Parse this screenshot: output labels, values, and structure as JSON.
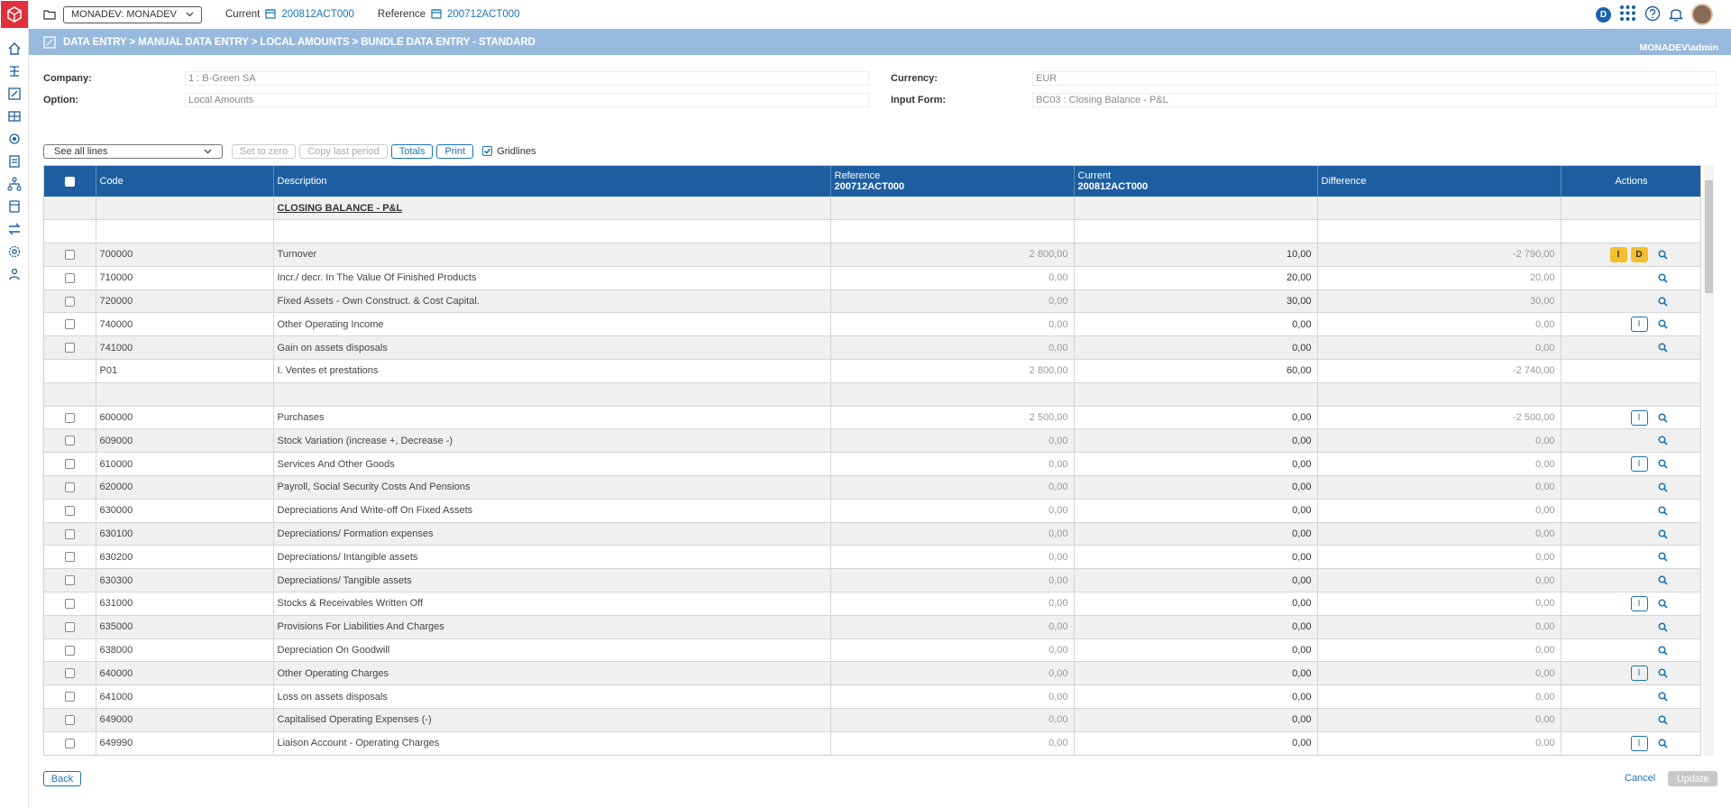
{
  "topbar": {
    "env_select": "MONADEV: MONADEV",
    "current_label": "Current",
    "current_value": "200812ACT000",
    "reference_label": "Reference",
    "reference_value": "200712ACT000",
    "badge_letter": "D"
  },
  "breadcrumb": {
    "path": "DATA ENTRY > MANUAL DATA ENTRY > LOCAL AMOUNTS > BUNDLE DATA ENTRY - STANDARD",
    "user": "MONADEV\\admin"
  },
  "form": {
    "company_label": "Company:",
    "company_value": "1 : B-Green SA",
    "option_label": "Option:",
    "option_value": "Local Amounts",
    "currency_label": "Currency:",
    "currency_value": "EUR",
    "input_form_label": "Input Form:",
    "input_form_value": "BC03 : Closing Balance - P&L"
  },
  "toolbar": {
    "lines_select": "See all lines",
    "set_to_zero": "Set to zero",
    "copy_last_period": "Copy last period",
    "totals": "Totals",
    "print": "Print",
    "gridlines": "Gridlines"
  },
  "grid": {
    "headers": {
      "code": "Code",
      "description": "Description",
      "reference": "Reference",
      "reference_period": "200712ACT000",
      "current": "Current",
      "current_period": "200812ACT000",
      "difference": "Difference",
      "actions": "Actions"
    },
    "rows": [
      {
        "type": "title",
        "description": "CLOSING BALANCE - P&L"
      },
      {
        "type": "blank"
      },
      {
        "type": "data",
        "checkbox": true,
        "code": "700000",
        "description": "Turnover",
        "reference": "2 800,00",
        "current": "10,00",
        "difference": "-2 790,00",
        "actions": [
          "I",
          "D"
        ],
        "action_style": "yellow"
      },
      {
        "type": "data",
        "checkbox": true,
        "code": "710000",
        "description": "Incr./ decr. In The Value Of Finished Products",
        "reference": "0,00",
        "current": "20,00",
        "difference": "20,00",
        "actions": []
      },
      {
        "type": "data",
        "checkbox": true,
        "code": "720000",
        "description": "Fixed Assets - Own Construct. & Cost Capital.",
        "reference": "0,00",
        "current": "30,00",
        "difference": "30,00",
        "actions": []
      },
      {
        "type": "data",
        "checkbox": true,
        "code": "740000",
        "description": "Other Operating Income",
        "reference": "0,00",
        "current": "0,00",
        "difference": "0,00",
        "actions": [
          "I"
        ],
        "action_style": "outline"
      },
      {
        "type": "data",
        "checkbox": true,
        "code": "741000",
        "description": "Gain on assets disposals",
        "reference": "0,00",
        "current": "0,00",
        "difference": "0,00",
        "actions": []
      },
      {
        "type": "total",
        "checkbox": false,
        "code": "P01",
        "description": "I. Ventes et prestations",
        "reference": "2 800,00",
        "current": "60,00",
        "difference": "-2 740,00",
        "no_search": true
      },
      {
        "type": "blank"
      },
      {
        "type": "data",
        "checkbox": true,
        "code": "600000",
        "description": "Purchases",
        "reference": "2 500,00",
        "current": "0,00",
        "difference": "-2 500,00",
        "actions": [
          "I"
        ],
        "action_style": "outline"
      },
      {
        "type": "data",
        "checkbox": true,
        "code": "609000",
        "description": "Stock Variation (increase +, Decrease -)",
        "reference": "0,00",
        "current": "0,00",
        "difference": "0,00",
        "actions": []
      },
      {
        "type": "data",
        "checkbox": true,
        "code": "610000",
        "description": "Services And Other Goods",
        "reference": "0,00",
        "current": "0,00",
        "difference": "0,00",
        "actions": [
          "I"
        ],
        "action_style": "outline"
      },
      {
        "type": "data",
        "checkbox": true,
        "code": "620000",
        "description": "Payroll, Social Security Costs And Pensions",
        "reference": "0,00",
        "current": "0,00",
        "difference": "0,00",
        "actions": []
      },
      {
        "type": "data",
        "checkbox": true,
        "code": "630000",
        "description": "Depreciations And Write-off On Fixed Assets",
        "reference": "0,00",
        "current": "0,00",
        "difference": "0,00",
        "actions": []
      },
      {
        "type": "data",
        "checkbox": true,
        "code": "630100",
        "description": "Depreciations/ Formation expenses",
        "reference": "0,00",
        "current": "0,00",
        "difference": "0,00",
        "actions": []
      },
      {
        "type": "data",
        "checkbox": true,
        "code": "630200",
        "description": "Depreciations/ Intangible assets",
        "reference": "0,00",
        "current": "0,00",
        "difference": "0,00",
        "actions": []
      },
      {
        "type": "data",
        "checkbox": true,
        "code": "630300",
        "description": "Depreciations/ Tangible assets",
        "reference": "0,00",
        "current": "0,00",
        "difference": "0,00",
        "actions": []
      },
      {
        "type": "data",
        "checkbox": true,
        "code": "631000",
        "description": "Stocks & Receivables Written Off",
        "reference": "0,00",
        "current": "0,00",
        "difference": "0,00",
        "actions": [
          "I"
        ],
        "action_style": "outline"
      },
      {
        "type": "data",
        "checkbox": true,
        "code": "635000",
        "description": "Provisions For Liabilities And Charges",
        "reference": "0,00",
        "current": "0,00",
        "difference": "0,00",
        "actions": []
      },
      {
        "type": "data",
        "checkbox": true,
        "code": "638000",
        "description": "Depreciation On Goodwill",
        "reference": "0,00",
        "current": "0,00",
        "difference": "0,00",
        "actions": []
      },
      {
        "type": "data",
        "checkbox": true,
        "code": "640000",
        "description": "Other Operating Charges",
        "reference": "0,00",
        "current": "0,00",
        "difference": "0,00",
        "actions": [
          "I"
        ],
        "action_style": "outline"
      },
      {
        "type": "data",
        "checkbox": true,
        "code": "641000",
        "description": "Loss on assets disposals",
        "reference": "0,00",
        "current": "0,00",
        "difference": "0,00",
        "actions": []
      },
      {
        "type": "data",
        "checkbox": true,
        "code": "649000",
        "description": "Capitalised Operating Expenses (-)",
        "reference": "0,00",
        "current": "0,00",
        "difference": "0,00",
        "actions": []
      },
      {
        "type": "data",
        "checkbox": true,
        "code": "649990",
        "description": "Liaison Account - Operating Charges",
        "reference": "0,00",
        "current": "0,00",
        "difference": "0,00",
        "actions": [
          "I"
        ],
        "action_style": "outline"
      }
    ]
  },
  "footer": {
    "back": "Back",
    "cancel": "Cancel",
    "update": "Update"
  },
  "colors": {
    "accent": "#1a73b8",
    "header_bg": "#1d5ea1",
    "breadcrumb_bg": "#97b9dd",
    "logo": "#e2303a",
    "highlight": "#f3bf2e"
  }
}
